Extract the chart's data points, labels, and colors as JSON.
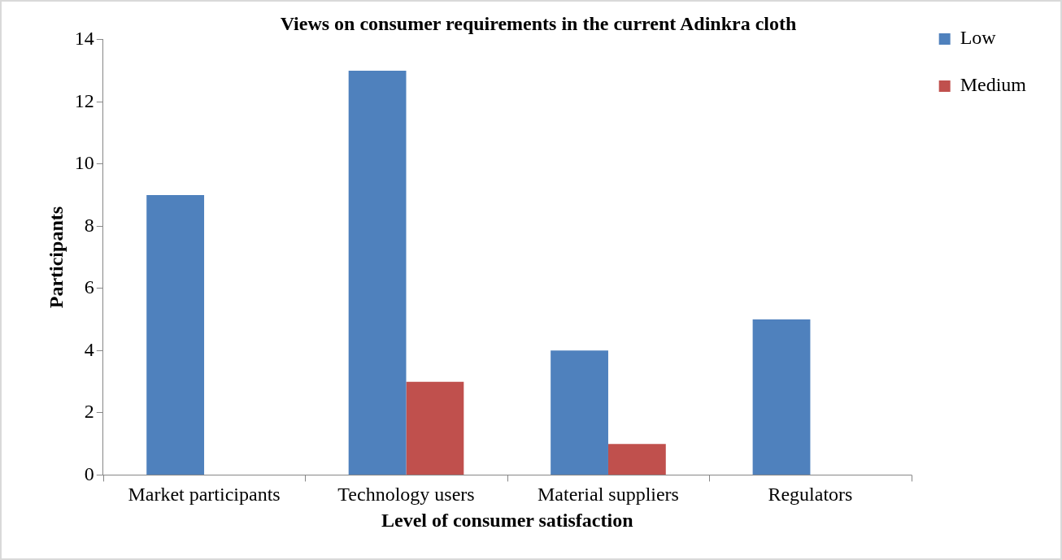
{
  "chart_data": {
    "type": "bar",
    "title": "Views on consumer requirements in the current Adinkra cloth",
    "xlabel": "Level of consumer satisfaction",
    "ylabel": "Participants",
    "categories": [
      "Market participants",
      "Technology users",
      "Material suppliers",
      "Regulators"
    ],
    "series": [
      {
        "name": "Low",
        "color": "#4f81bd",
        "values": [
          9,
          13,
          4,
          5
        ]
      },
      {
        "name": "Medium",
        "color": "#c0504d",
        "values": [
          0,
          3,
          1,
          0
        ]
      }
    ],
    "ylim": [
      0,
      14
    ],
    "yticks": [
      0,
      2,
      4,
      6,
      8,
      10,
      12,
      14
    ],
    "grid": false,
    "legend": "right"
  }
}
